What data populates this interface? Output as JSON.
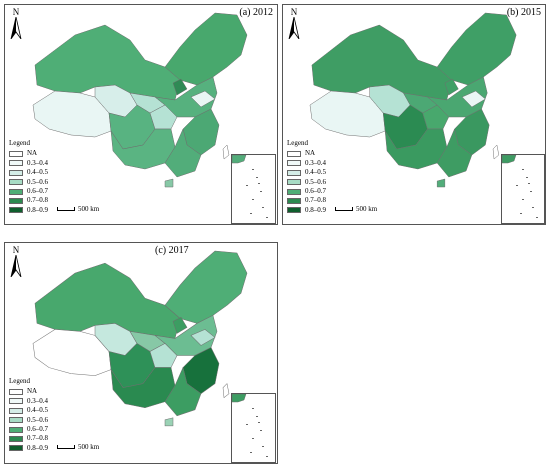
{
  "panels": [
    {
      "label": "(a) 2012",
      "region_colors": {
        "northwest": "#4fae76",
        "northeast": "#48a86d",
        "tibet": "#e9f6f4",
        "qinghai": "#d7eeea",
        "gansu": "#b5e2d4",
        "sichuan": "#58b381",
        "central": "#56b17e",
        "southwest": "#5ab482",
        "south": "#52ad7a",
        "east": "#4ca874",
        "hubei": "#b5e2d4",
        "shandong": "#e9f6f4",
        "hainan": "#87c8a6",
        "ningxia": "#2f8a55"
      }
    },
    {
      "label": "(b) 2015",
      "region_colors": {
        "northwest": "#3f9d64",
        "northeast": "#3f9f66",
        "tibet": "#e9f6f4",
        "qinghai": "#b5e2d4",
        "gansu": "#4ca874",
        "sichuan": "#2b8b52",
        "central": "#4aa771",
        "southwest": "#3a9a60",
        "south": "#3e9c63",
        "east": "#3a9860",
        "hubei": "#48a86d",
        "shandong": "#e9f6f4",
        "hainan": "#52ad7a",
        "ningxia": "#3f9f66"
      }
    },
    {
      "label": "(c) 2017",
      "region_colors": {
        "northwest": "#48a86d",
        "northeast": "#4fae76",
        "tibet": "#ffffff",
        "qinghai": "#c5e8de",
        "gansu": "#87c8a6",
        "sichuan": "#2e9158",
        "central": "#6cbd92",
        "southwest": "#2a8a50",
        "south": "#3c9d62",
        "east": "#17713c",
        "hubei": "#b5e2d4",
        "shandong": "#b5e2d4",
        "hainan": "#9ad2b5",
        "ningxia": "#3c9d62"
      }
    }
  ],
  "north_label": "N",
  "legend": {
    "title": "Legend",
    "items": [
      {
        "label": "NA",
        "color": "#ffffff"
      },
      {
        "label": "0.3–0.4",
        "color": "#f0f9f8"
      },
      {
        "label": "0.4–0.5",
        "color": "#d4ede7"
      },
      {
        "label": "0.5–0.6",
        "color": "#a8dcc5"
      },
      {
        "label": "0.6–0.7",
        "color": "#4fae76"
      },
      {
        "label": "0.7–0.8",
        "color": "#2c8a50"
      },
      {
        "label": "0.8–0.9",
        "color": "#0f5e2d"
      }
    ]
  },
  "scale_label": "500 km"
}
